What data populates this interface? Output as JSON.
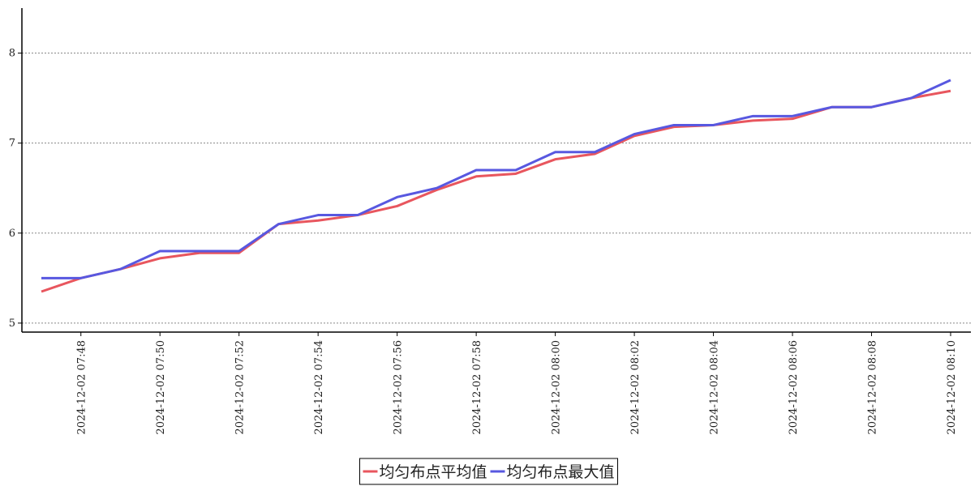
{
  "chart_data": {
    "type": "line",
    "categories": [
      null,
      "2024-12-02 07:48",
      null,
      "2024-12-02 07:50",
      null,
      "2024-12-02 07:52",
      null,
      "2024-12-02 07:54",
      null,
      "2024-12-02 07:56",
      null,
      "2024-12-02 07:58",
      null,
      "2024-12-02 08:00",
      null,
      "2024-12-02 08:02",
      null,
      "2024-12-02 08:04",
      null,
      "2024-12-02 08:06",
      null,
      "2024-12-02 08:08",
      null,
      "2024-12-02 08:10"
    ],
    "series": [
      {
        "name": "均匀布点平均值",
        "color": "#e8565e",
        "values": [
          5.35,
          5.5,
          5.6,
          5.72,
          5.78,
          5.78,
          6.1,
          6.14,
          6.2,
          6.3,
          6.48,
          6.63,
          6.66,
          6.82,
          6.88,
          7.08,
          7.18,
          7.2,
          7.25,
          7.27,
          7.4,
          7.4,
          7.5,
          7.58
        ]
      },
      {
        "name": "均匀布点最大值",
        "color": "#5858e0",
        "values": [
          5.5,
          5.5,
          5.6,
          5.8,
          5.8,
          5.8,
          6.1,
          6.2,
          6.2,
          6.4,
          6.5,
          6.7,
          6.7,
          6.9,
          6.9,
          7.1,
          7.2,
          7.2,
          7.3,
          7.3,
          7.4,
          7.4,
          7.5,
          7.7
        ]
      }
    ],
    "ylim": [
      4.9,
      8.5
    ],
    "yticks": [
      5,
      6,
      7,
      8
    ],
    "grid": true,
    "legend": "bottom"
  }
}
